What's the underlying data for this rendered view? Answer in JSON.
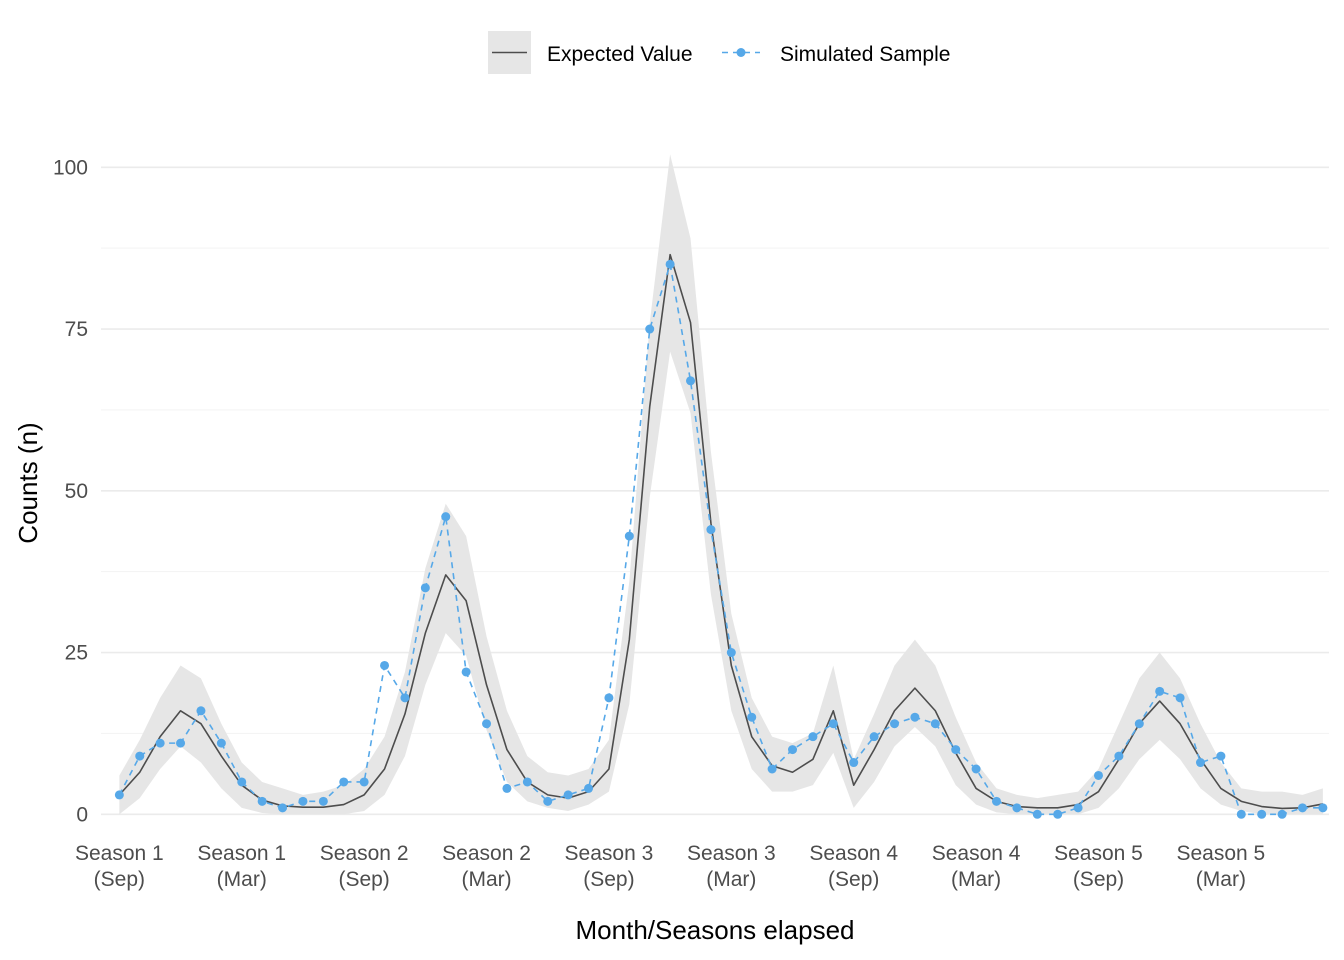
{
  "chart_data": {
    "type": "line",
    "xlabel": "Month/Seasons elapsed",
    "ylabel": "Counts (n)",
    "ylim": [
      -1.5,
      107
    ],
    "xlim": [
      -0.9,
      59.3
    ],
    "y_ticks": [
      0,
      25,
      50,
      75,
      100
    ],
    "x_ticks": [
      {
        "x": 0,
        "line1": "Season 1",
        "line2": "(Sep)"
      },
      {
        "x": 6,
        "line1": "Season 1",
        "line2": "(Mar)"
      },
      {
        "x": 12,
        "line1": "Season 2",
        "line2": "(Sep)"
      },
      {
        "x": 18,
        "line1": "Season 2",
        "line2": "(Mar)"
      },
      {
        "x": 24,
        "line1": "Season 3",
        "line2": "(Sep)"
      },
      {
        "x": 30,
        "line1": "Season 3",
        "line2": "(Mar)"
      },
      {
        "x": 36,
        "line1": "Season 4",
        "line2": "(Sep)"
      },
      {
        "x": 42,
        "line1": "Season 4",
        "line2": "(Mar)"
      },
      {
        "x": 48,
        "line1": "Season 5",
        "line2": "(Sep)"
      },
      {
        "x": 54,
        "line1": "Season 5",
        "line2": "(Mar)"
      }
    ],
    "grid": true,
    "legend_position": "top",
    "series": [
      {
        "name": "Expected Value",
        "style": "solid-line-with-ribbon",
        "color": "#4d4d4d",
        "ribbon_color": "#e6e6e6",
        "values": [
          3,
          6.5,
          12,
          16,
          14,
          9,
          4.5,
          2.2,
          1.3,
          1.1,
          1.1,
          1.5,
          3,
          7,
          15.5,
          28,
          37,
          33,
          20,
          10,
          5,
          3,
          2.5,
          3.5,
          7,
          27,
          63,
          86.5,
          76,
          45,
          23,
          12,
          7.5,
          6.5,
          8.5,
          16,
          4.5,
          10,
          16,
          19.5,
          16,
          9.5,
          4,
          2,
          1.2,
          1,
          1,
          1.5,
          3.5,
          8.5,
          14,
          17.5,
          14,
          8.5,
          4,
          2,
          1.2,
          0.9,
          1,
          1.6
        ],
        "ribbon_lower": [
          0,
          2.5,
          7,
          10.5,
          8,
          4,
          1,
          0.2,
          0,
          0,
          0,
          0,
          0.5,
          3,
          9,
          20,
          28,
          24.5,
          13,
          5,
          2,
          1,
          0.5,
          1.5,
          3.5,
          17,
          49,
          71.5,
          62,
          34,
          16,
          7,
          3.5,
          3.5,
          4.5,
          9.5,
          1,
          5,
          10.5,
          13.5,
          10.5,
          4.5,
          1.5,
          0.3,
          0,
          0,
          0,
          0,
          1,
          4,
          8.5,
          11.5,
          8.5,
          4,
          1.5,
          0.5,
          0,
          0,
          0,
          0
        ],
        "ribbon_upper": [
          6,
          11.5,
          18,
          23,
          21,
          14,
          8,
          5,
          4,
          3,
          3.5,
          4.5,
          7,
          12,
          22,
          38,
          48,
          43,
          27.5,
          16,
          9,
          6.5,
          6,
          7,
          11.5,
          36,
          76,
          102,
          89,
          56,
          31,
          18,
          12,
          11,
          12.5,
          23,
          8.5,
          15.5,
          23,
          27,
          23,
          15,
          8,
          4,
          3,
          2.5,
          3,
          3.5,
          7,
          14,
          21,
          25,
          21,
          14,
          8,
          4,
          3.5,
          3.5,
          3,
          4
        ]
      },
      {
        "name": "Simulated Sample",
        "style": "dashed-line-with-points",
        "color": "#56a8e8",
        "values": [
          3,
          9,
          11,
          11,
          16,
          11,
          5,
          2,
          1,
          2,
          2,
          5,
          5,
          23,
          18,
          35,
          46,
          22,
          14,
          4,
          5,
          2,
          3,
          4,
          18,
          43,
          75,
          85,
          67,
          44,
          25,
          15,
          7,
          10,
          12,
          14,
          8,
          12,
          14,
          15,
          14,
          10,
          7,
          2,
          1,
          0,
          0,
          1,
          6,
          9,
          14,
          19,
          18,
          8,
          9,
          0,
          0,
          0,
          1,
          1
        ]
      }
    ]
  }
}
